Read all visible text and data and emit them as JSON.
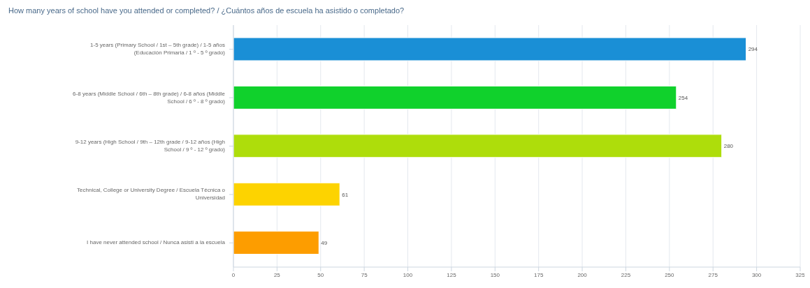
{
  "chart_data": {
    "type": "bar",
    "orientation": "horizontal",
    "title": "How many years of school have you attended or completed? / ¿Cuántos años de escuela ha asistido o completado?",
    "categories": [
      "1-5 years (Primary School / 1st – 5th grade) / 1-5 años (Educación Primaria / 1 º - 5 º grado)",
      "6-8 years (Middle School / 6th – 8th grade) / 6-8 años (Middle School / 6 º - 8 º grado)",
      "9-12 years (High School / 9th – 12th grade / 9-12 años (High School / 9 º - 12 º grado)",
      "Technical, College or University Degree / Escuela Técnica o Universidad",
      "I have never attended school / Nunca asisti a la escuela"
    ],
    "values": [
      294,
      254,
      280,
      61,
      49
    ],
    "colors": [
      "#1a8fd6",
      "#10d12c",
      "#aedd0b",
      "#fdd300",
      "#fd9d00"
    ],
    "xlim": [
      0,
      325
    ],
    "xticks": [
      0,
      25,
      50,
      75,
      100,
      125,
      150,
      175,
      200,
      225,
      250,
      275,
      300,
      325
    ],
    "grid": "x",
    "data_labels": true,
    "legend": false
  }
}
